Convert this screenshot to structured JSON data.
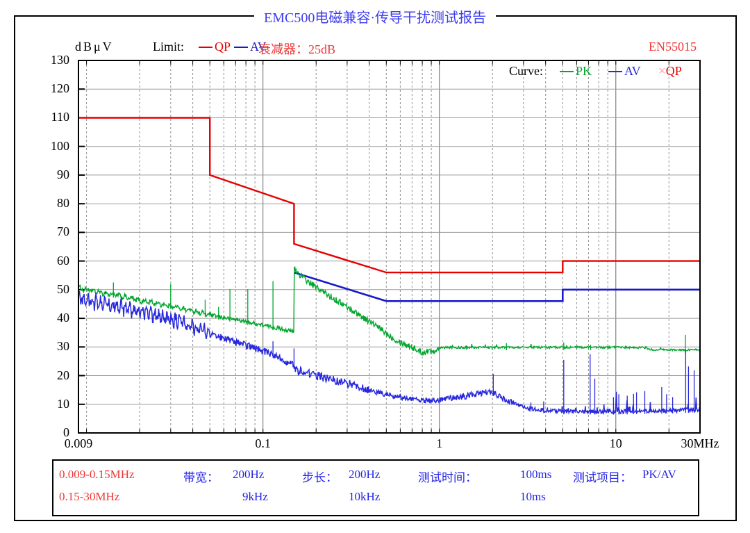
{
  "title": "EMC500电磁兼容·传导干扰测试报告",
  "header": {
    "y_axis_unit": "dBμV",
    "limit_label": "Limit:",
    "limit_qp_label": "QP",
    "limit_av_label": "AV",
    "attenuator": "衰减器：25dB",
    "standard": "EN55015"
  },
  "curve_legend": {
    "label": "Curve:",
    "pk_label": "PK",
    "av_label": "AV",
    "qp_label": "QP",
    "qp_marker": "×"
  },
  "colors": {
    "title_blue": "#3c3cf0",
    "text_red": "#f03636",
    "text_blue": "#2424e6",
    "qp_limit": "#e60000",
    "av_limit": "#1a1ac8",
    "pk_curve": "#00a62e",
    "av_curve": "#2828dd",
    "qp_marker": "#ff9090",
    "grid_minor": "#8f8f8f",
    "grid_major": "#6a6a6a"
  },
  "chart_data": {
    "type": "line",
    "title": "EMC500电磁兼容·传导干扰测试报告",
    "standard": "EN55015",
    "x_axis": {
      "scale": "log",
      "min": 0.009,
      "max": 30,
      "unit": "MHz",
      "ticks": [
        {
          "value": 0.009,
          "label": "0.009"
        },
        {
          "value": 0.1,
          "label": "0.1"
        },
        {
          "value": 1,
          "label": "1"
        },
        {
          "value": 10,
          "label": "10"
        },
        {
          "value": 30,
          "label": "30MHz"
        }
      ]
    },
    "y_axis": {
      "label": "dBμV",
      "min": 0,
      "max": 130,
      "step": 10
    },
    "limit_lines": [
      {
        "name": "QP",
        "color": "#e60000",
        "width": 2.4,
        "points": [
          [
            0.009,
            110
          ],
          [
            0.05,
            110
          ],
          [
            0.05,
            90
          ],
          [
            0.15,
            80
          ],
          [
            0.15,
            66
          ],
          [
            0.5,
            56
          ],
          [
            5,
            56
          ],
          [
            5,
            60
          ],
          [
            30,
            60
          ]
        ]
      },
      {
        "name": "AV",
        "color": "#1a1ac8",
        "width": 2.6,
        "points": [
          [
            0.15,
            56
          ],
          [
            0.5,
            46
          ],
          [
            5,
            46
          ],
          [
            5,
            50
          ],
          [
            30,
            50
          ]
        ]
      }
    ],
    "measured_series": [
      {
        "name": "PK",
        "color": "#00a62e",
        "width": 1.4,
        "trend": [
          [
            0.009,
            50.5
          ],
          [
            0.01,
            50
          ],
          [
            0.012,
            49
          ],
          [
            0.014,
            48.3
          ],
          [
            0.017,
            47.2
          ],
          [
            0.02,
            46.2
          ],
          [
            0.025,
            45.2
          ],
          [
            0.03,
            44.3
          ],
          [
            0.036,
            43.2
          ],
          [
            0.043,
            42.2
          ],
          [
            0.05,
            41.2
          ],
          [
            0.06,
            40.2
          ],
          [
            0.07,
            39.6
          ],
          [
            0.08,
            38.8
          ],
          [
            0.09,
            38.2
          ],
          [
            0.1,
            37.6
          ],
          [
            0.115,
            36.8
          ],
          [
            0.13,
            36.2
          ],
          [
            0.1495,
            35.2
          ],
          [
            0.15,
            57.5
          ],
          [
            0.16,
            55.5
          ],
          [
            0.18,
            52.8
          ],
          [
            0.2,
            50.8
          ],
          [
            0.225,
            48.8
          ],
          [
            0.25,
            47
          ],
          [
            0.28,
            45.2
          ],
          [
            0.32,
            42.8
          ],
          [
            0.36,
            40.8
          ],
          [
            0.4,
            39
          ],
          [
            0.45,
            36.8
          ],
          [
            0.5,
            34.8
          ],
          [
            0.55,
            33
          ],
          [
            0.6,
            31.8
          ],
          [
            0.65,
            30.8
          ],
          [
            0.7,
            30
          ],
          [
            0.75,
            28.8
          ],
          [
            0.8,
            28
          ],
          [
            0.85,
            28.6
          ],
          [
            0.9,
            28.4
          ],
          [
            0.95,
            29
          ],
          [
            1,
            29.8
          ],
          [
            5,
            29.9
          ],
          [
            15,
            29.8
          ],
          [
            15.2,
            29.1
          ],
          [
            30,
            28.9
          ]
        ],
        "noise": [
          [
            0.009,
            0.149,
            0.7
          ],
          [
            0.15,
            0.99,
            1.1
          ],
          [
            1,
            30,
            0.35
          ]
        ],
        "osc": [
          [
            0.009,
            0.05,
            0.5,
            0.55
          ]
        ],
        "spike_noise": [
          [
            1,
            30,
            0.04,
            1.0
          ]
        ],
        "spikes": [
          [
            0.0142,
            52.5
          ],
          [
            0.03,
            52
          ],
          [
            0.047,
            46.5
          ],
          [
            0.056,
            44
          ],
          [
            0.065,
            50.2
          ],
          [
            0.082,
            50.2
          ],
          [
            0.114,
            53
          ],
          [
            2.4,
            31.3
          ],
          [
            5.07,
            31.6
          ],
          [
            7.2,
            30.8
          ],
          [
            24.8,
            34.2
          ]
        ]
      },
      {
        "name": "AV",
        "color": "#2828dd",
        "width": 1.5,
        "trend": [
          [
            0.009,
            47
          ],
          [
            0.011,
            45.8
          ],
          [
            0.013,
            44.8
          ],
          [
            0.016,
            43.6
          ],
          [
            0.02,
            42.4
          ],
          [
            0.025,
            41
          ],
          [
            0.03,
            39.8
          ],
          [
            0.036,
            38.2
          ],
          [
            0.043,
            36.4
          ],
          [
            0.05,
            34.6
          ],
          [
            0.06,
            33
          ],
          [
            0.07,
            31.6
          ],
          [
            0.08,
            30.6
          ],
          [
            0.09,
            29.6
          ],
          [
            0.1,
            28.6
          ],
          [
            0.115,
            27.2
          ],
          [
            0.13,
            25.6
          ],
          [
            0.149,
            23.6
          ],
          [
            0.155,
            22
          ],
          [
            0.17,
            21.2
          ],
          [
            0.2,
            20.2
          ],
          [
            0.23,
            19
          ],
          [
            0.26,
            18.2
          ],
          [
            0.3,
            17.4
          ],
          [
            0.35,
            16.2
          ],
          [
            0.4,
            14.8
          ],
          [
            0.45,
            14
          ],
          [
            0.5,
            13.4
          ],
          [
            0.55,
            12.8
          ],
          [
            0.6,
            12.4
          ],
          [
            0.7,
            11.9
          ],
          [
            0.8,
            11.4
          ],
          [
            0.9,
            11
          ],
          [
            1,
            11.4
          ],
          [
            1.1,
            12
          ],
          [
            1.3,
            12.6
          ],
          [
            1.6,
            13.4
          ],
          [
            1.85,
            14.2
          ],
          [
            2,
            14
          ],
          [
            2.2,
            12.6
          ],
          [
            2.5,
            10.8
          ],
          [
            2.8,
            9.6
          ],
          [
            3.2,
            8.6
          ],
          [
            3.6,
            8.1
          ],
          [
            4,
            7.9
          ],
          [
            5,
            7.5
          ],
          [
            10,
            7.4
          ],
          [
            20,
            7.8
          ],
          [
            30,
            8.2
          ]
        ],
        "noise": [
          [
            0.009,
            0.05,
            1.9
          ],
          [
            0.05,
            0.149,
            1.2
          ],
          [
            0.15,
            0.4,
            1.5
          ],
          [
            0.4,
            1.2,
            0.9
          ],
          [
            1.2,
            2.6,
            1.1
          ],
          [
            2.6,
            30,
            0.7
          ]
        ],
        "osc": [
          [
            0.009,
            0.05,
            1.5,
            0.85
          ]
        ],
        "spike_noise": [
          [
            4.5,
            30,
            0.1,
            4.0
          ],
          [
            9.5,
            15,
            0.08,
            6.0
          ]
        ],
        "spikes": [
          [
            0.03,
            42
          ],
          [
            0.047,
            35
          ],
          [
            0.065,
            32.5
          ],
          [
            0.082,
            30.5
          ],
          [
            0.114,
            32
          ],
          [
            0.15,
            29.5
          ],
          [
            2.02,
            20.6
          ],
          [
            3.3,
            10.6
          ],
          [
            3.9,
            11
          ],
          [
            5.07,
            25.5
          ],
          [
            7.15,
            27.5
          ],
          [
            7.6,
            19
          ],
          [
            9.7,
            12.5
          ],
          [
            10.4,
            13.5
          ],
          [
            11.6,
            13
          ],
          [
            12.6,
            13.6
          ],
          [
            13.1,
            14.2
          ],
          [
            14.6,
            14.6
          ],
          [
            18.2,
            16
          ],
          [
            19.4,
            13.5
          ],
          [
            21,
            12.5
          ],
          [
            24.9,
            29
          ],
          [
            25.8,
            23.2
          ],
          [
            27.8,
            21.8
          ]
        ]
      }
    ],
    "legend_position": "top-right",
    "grid": true
  },
  "footer": {
    "rows": [
      {
        "range": "0.009-0.15MHz",
        "bandwidth_label": "带宽：",
        "bandwidth": "200Hz",
        "step_label": "步长：",
        "step": "200Hz",
        "time_label": "测试时间：",
        "time": "100ms",
        "item_label": "测试项目：",
        "item": "PK/AV"
      },
      {
        "range": "0.15-30MHz",
        "bandwidth": "9kHz",
        "step": "10kHz",
        "time": "10ms"
      }
    ]
  }
}
